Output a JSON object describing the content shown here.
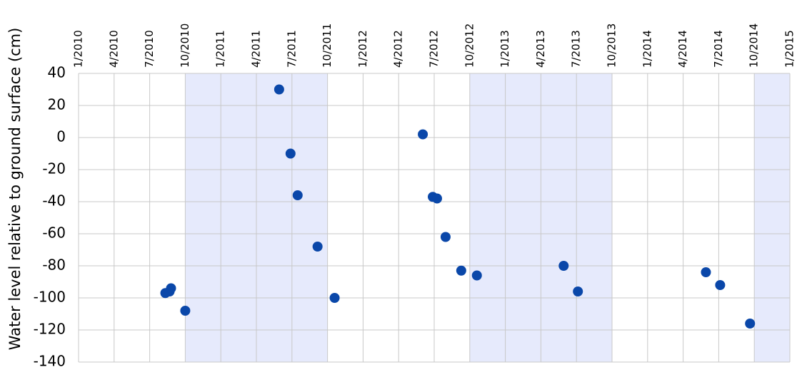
{
  "chart_data": {
    "type": "scatter",
    "y_label": "Water level relative to ground surface (cm)",
    "x": [
      2010.61,
      2010.64,
      2010.65,
      2010.75,
      2011.41,
      2011.49,
      2011.54,
      2011.68,
      2011.8,
      2012.42,
      2012.49,
      2012.52,
      2012.58,
      2012.69,
      2012.8,
      2013.41,
      2013.51,
      2014.41,
      2014.51,
      2014.72
    ],
    "values": [
      -97,
      -96,
      -94,
      -108,
      30,
      -10,
      -36,
      -68,
      -100,
      2,
      -37,
      -38,
      -62,
      -83,
      -86,
      -80,
      -96,
      -84,
      -92,
      -116
    ],
    "color": "#0a47a9",
    "xlim": [
      2010,
      2015
    ],
    "xticks": [
      {
        "value": 2010,
        "label": "1/2010"
      },
      {
        "value": 2010.25,
        "label": "4/2010"
      },
      {
        "value": 2010.5,
        "label": "7/2010"
      },
      {
        "value": 2010.75,
        "label": "10/2010"
      },
      {
        "value": 2011,
        "label": "1/2011"
      },
      {
        "value": 2011.25,
        "label": "4/2011"
      },
      {
        "value": 2011.5,
        "label": "7/2011"
      },
      {
        "value": 2011.75,
        "label": "10/2011"
      },
      {
        "value": 2012,
        "label": "1/2012"
      },
      {
        "value": 2012.25,
        "label": "4/2012"
      },
      {
        "value": 2012.5,
        "label": "7/2012"
      },
      {
        "value": 2012.75,
        "label": "10/2012"
      },
      {
        "value": 2013,
        "label": "1/2013"
      },
      {
        "value": 2013.25,
        "label": "4/2013"
      },
      {
        "value": 2013.5,
        "label": "7/2013"
      },
      {
        "value": 2013.75,
        "label": "10/2013"
      },
      {
        "value": 2014,
        "label": "1/2014"
      },
      {
        "value": 2014.25,
        "label": "4/2014"
      },
      {
        "value": 2014.5,
        "label": "7/2014"
      },
      {
        "value": 2014.75,
        "label": "10/2014"
      },
      {
        "value": 2015,
        "label": "1/2015"
      }
    ],
    "ylim": [
      -140,
      40
    ],
    "yticks": [
      40,
      20,
      0,
      -20,
      -40,
      -60,
      -80,
      -100,
      -120,
      -140
    ],
    "grid": true,
    "shaded_ranges": [
      [
        2010.75,
        2011.75
      ],
      [
        2012.75,
        2013.75
      ],
      [
        2014.75,
        2015
      ]
    ],
    "shade_color": "#e6eafc"
  }
}
